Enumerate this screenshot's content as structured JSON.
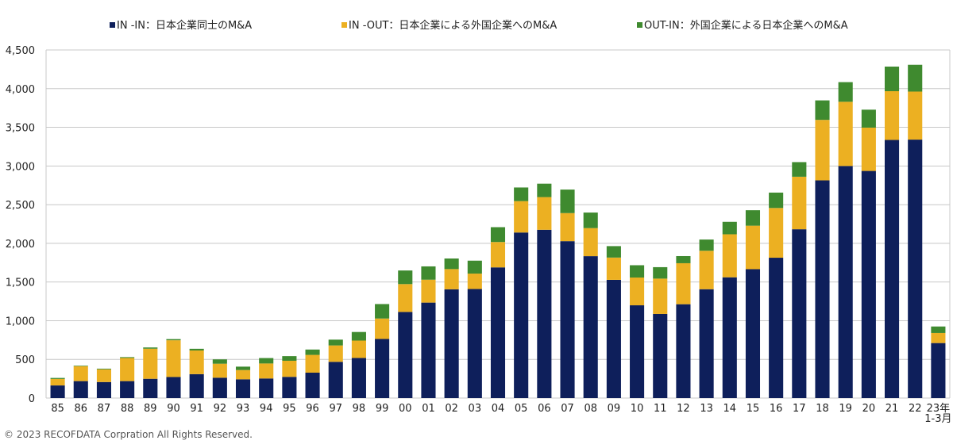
{
  "chart_data": {
    "type": "bar",
    "stacked": true,
    "categories": [
      "85",
      "86",
      "87",
      "88",
      "89",
      "90",
      "91",
      "92",
      "93",
      "94",
      "95",
      "96",
      "97",
      "98",
      "99",
      "00",
      "01",
      "02",
      "03",
      "04",
      "05",
      "06",
      "07",
      "08",
      "09",
      "10",
      "11",
      "12",
      "13",
      "14",
      "15",
      "16",
      "17",
      "18",
      "19",
      "20",
      "21",
      "22",
      "23年\n1-3月"
    ],
    "series": [
      {
        "name": "IN -IN：日本企業同士のM&A",
        "color": "#0e1f5b",
        "values": [
          163,
          219,
          207,
          219,
          249,
          272,
          309,
          263,
          242,
          253,
          274,
          328,
          468,
          518,
          764,
          1113,
          1234,
          1406,
          1410,
          1689,
          2140,
          2175,
          2028,
          1834,
          1528,
          1199,
          1087,
          1213,
          1407,
          1561,
          1666,
          1814,
          2182,
          2814,
          3000,
          2936,
          3337,
          3341,
          711
        ]
      },
      {
        "name": "IN -OUT：日本企業による外国企業へのM&A",
        "color": "#ecb022",
        "values": [
          84,
          193,
          164,
          299,
          389,
          475,
          306,
          181,
          120,
          194,
          208,
          230,
          212,
          225,
          264,
          360,
          296,
          261,
          199,
          328,
          406,
          423,
          363,
          363,
          288,
          359,
          457,
          530,
          497,
          556,
          562,
          643,
          679,
          782,
          830,
          560,
          630,
          621,
          130
        ]
      },
      {
        "name": "OUT-IN：外国企業による日本企業へのM&A",
        "color": "#3f8a2f",
        "values": [
          13,
          7,
          9,
          11,
          16,
          15,
          22,
          56,
          44,
          70,
          60,
          69,
          75,
          111,
          187,
          176,
          172,
          137,
          167,
          192,
          176,
          173,
          304,
          201,
          148,
          159,
          148,
          92,
          145,
          161,
          200,
          199,
          189,
          252,
          254,
          232,
          318,
          346,
          84
        ]
      }
    ],
    "ylim": [
      0,
      4500
    ],
    "yticks": [
      "0",
      "500",
      "1,000",
      "1,500",
      "2,000",
      "2,500",
      "3,000",
      "3,500",
      "4,000",
      "4,500"
    ],
    "ytick_values": [
      0,
      500,
      1000,
      1500,
      2000,
      2500,
      3000,
      3500,
      4000,
      4500
    ],
    "grid": true,
    "legend_position": "top",
    "title": "",
    "xlabel": "",
    "ylabel": ""
  },
  "footer": {
    "copyright": "© 2023 RECOFDATA Corpration All Rights Reserved."
  }
}
